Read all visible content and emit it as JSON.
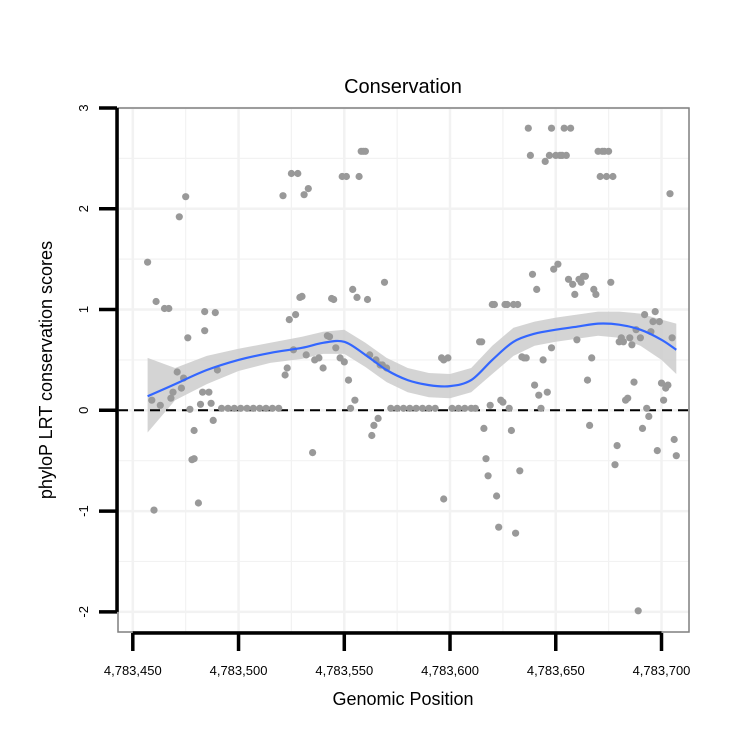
{
  "chart_data": {
    "type": "scatter",
    "title": "Conservation",
    "xlabel": "Genomic Position",
    "ylabel": "phyloP LRT conservation scores",
    "xlim": [
      4783443,
      4783713
    ],
    "ylim": [
      -2.2,
      3
    ],
    "x_ticks": [
      4783450,
      4783500,
      4783550,
      4783600,
      4783650,
      4783700
    ],
    "x_tick_labels": [
      "4,783,450",
      "4,783,500",
      "4,783,550",
      "4,783,600",
      "4,783,650",
      "4,783,700"
    ],
    "y_ticks": [
      -2,
      -1,
      0,
      1,
      2,
      3
    ],
    "y_tick_labels": [
      "-2",
      "-1",
      "0",
      "1",
      "2",
      "3"
    ],
    "reference_line": {
      "y": 0,
      "style": "dashed"
    },
    "colors": {
      "points": "#999999",
      "smooth": "#3366ff",
      "band": "#cccccc",
      "panel_border": "#7f7f7f",
      "grid": "#f2f2f2"
    },
    "points": [
      [
        4783457,
        1.47
      ],
      [
        4783459,
        0.1
      ],
      [
        4783460,
        -0.99
      ],
      [
        4783461,
        1.08
      ],
      [
        4783463,
        0.05
      ],
      [
        4783465,
        1.01
      ],
      [
        4783467,
        1.01
      ],
      [
        4783468,
        0.12
      ],
      [
        4783469,
        0.18
      ],
      [
        4783471,
        0.38
      ],
      [
        4783472,
        1.92
      ],
      [
        4783473,
        0.22
      ],
      [
        4783474,
        0.32
      ],
      [
        4783475,
        2.12
      ],
      [
        4783476,
        0.72
      ],
      [
        4783477,
        0.01
      ],
      [
        4783478,
        -0.49
      ],
      [
        4783479,
        -0.48
      ],
      [
        4783479,
        -0.2
      ],
      [
        4783481,
        -0.92
      ],
      [
        4783482,
        0.06
      ],
      [
        4783483,
        0.18
      ],
      [
        4783484,
        0.98
      ],
      [
        4783484,
        0.79
      ],
      [
        4783486,
        0.18
      ],
      [
        4783487,
        0.07
      ],
      [
        4783488,
        -0.1
      ],
      [
        4783489,
        0.97
      ],
      [
        4783490,
        0.4
      ],
      [
        4783492,
        0.02
      ],
      [
        4783495,
        0.02
      ],
      [
        4783498,
        0.02
      ],
      [
        4783501,
        0.02
      ],
      [
        4783504,
        0.02
      ],
      [
        4783507,
        0.02
      ],
      [
        4783510,
        0.02
      ],
      [
        4783513,
        0.02
      ],
      [
        4783516,
        0.02
      ],
      [
        4783519,
        0.02
      ],
      [
        4783521,
        2.13
      ],
      [
        4783522,
        0.35
      ],
      [
        4783523,
        0.42
      ],
      [
        4783524,
        0.9
      ],
      [
        4783525,
        2.35
      ],
      [
        4783526,
        0.6
      ],
      [
        4783527,
        0.95
      ],
      [
        4783528,
        2.35
      ],
      [
        4783529,
        1.12
      ],
      [
        4783530,
        1.13
      ],
      [
        4783531,
        2.14
      ],
      [
        4783532,
        0.55
      ],
      [
        4783533,
        2.2
      ],
      [
        4783535,
        -0.42
      ],
      [
        4783536,
        0.5
      ],
      [
        4783538,
        0.52
      ],
      [
        4783540,
        0.42
      ],
      [
        4783542,
        0.74
      ],
      [
        4783543,
        0.73
      ],
      [
        4783544,
        1.11
      ],
      [
        4783545,
        1.1
      ],
      [
        4783546,
        0.62
      ],
      [
        4783548,
        0.52
      ],
      [
        4783549,
        2.32
      ],
      [
        4783550,
        0.48
      ],
      [
        4783551,
        2.32
      ],
      [
        4783552,
        0.3
      ],
      [
        4783553,
        0.02
      ],
      [
        4783554,
        1.2
      ],
      [
        4783555,
        0.1
      ],
      [
        4783556,
        1.12
      ],
      [
        4783557,
        2.32
      ],
      [
        4783558,
        2.57
      ],
      [
        4783559,
        2.57
      ],
      [
        4783560,
        2.57
      ],
      [
        4783561,
        1.1
      ],
      [
        4783562,
        0.55
      ],
      [
        4783563,
        -0.25
      ],
      [
        4783564,
        -0.15
      ],
      [
        4783565,
        0.5
      ],
      [
        4783566,
        -0.08
      ],
      [
        4783567,
        0.45
      ],
      [
        4783568,
        0.45
      ],
      [
        4783569,
        1.27
      ],
      [
        4783570,
        0.42
      ],
      [
        4783572,
        0.02
      ],
      [
        4783575,
        0.02
      ],
      [
        4783578,
        0.02
      ],
      [
        4783581,
        0.02
      ],
      [
        4783584,
        0.02
      ],
      [
        4783587,
        0.02
      ],
      [
        4783590,
        0.02
      ],
      [
        4783593,
        0.02
      ],
      [
        4783596,
        0.52
      ],
      [
        4783597,
        0.5
      ],
      [
        4783597,
        -0.88
      ],
      [
        4783599,
        0.52
      ],
      [
        4783601,
        0.02
      ],
      [
        4783604,
        0.02
      ],
      [
        4783607,
        0.02
      ],
      [
        4783610,
        0.02
      ],
      [
        4783612,
        0.02
      ],
      [
        4783614,
        0.68
      ],
      [
        4783615,
        0.68
      ],
      [
        4783616,
        -0.18
      ],
      [
        4783617,
        -0.48
      ],
      [
        4783618,
        -0.65
      ],
      [
        4783619,
        0.05
      ],
      [
        4783620,
        1.05
      ],
      [
        4783621,
        1.05
      ],
      [
        4783622,
        -0.85
      ],
      [
        4783623,
        -1.16
      ],
      [
        4783624,
        0.1
      ],
      [
        4783625,
        0.08
      ],
      [
        4783626,
        1.05
      ],
      [
        4783627,
        1.05
      ],
      [
        4783628,
        0.02
      ],
      [
        4783629,
        -0.2
      ],
      [
        4783630,
        1.05
      ],
      [
        4783631,
        -1.22
      ],
      [
        4783632,
        1.05
      ],
      [
        4783633,
        -0.6
      ],
      [
        4783634,
        0.53
      ],
      [
        4783635,
        0.52
      ],
      [
        4783636,
        0.52
      ],
      [
        4783637,
        2.8
      ],
      [
        4783638,
        2.53
      ],
      [
        4783639,
        1.35
      ],
      [
        4783640,
        0.25
      ],
      [
        4783641,
        1.2
      ],
      [
        4783642,
        0.15
      ],
      [
        4783643,
        0.02
      ],
      [
        4783644,
        0.5
      ],
      [
        4783645,
        2.47
      ],
      [
        4783646,
        0.18
      ],
      [
        4783647,
        2.53
      ],
      [
        4783648,
        2.8
      ],
      [
        4783648,
        0.62
      ],
      [
        4783649,
        1.4
      ],
      [
        4783650,
        2.53
      ],
      [
        4783651,
        1.45
      ],
      [
        4783652,
        2.53
      ],
      [
        4783653,
        2.53
      ],
      [
        4783654,
        2.8
      ],
      [
        4783655,
        2.53
      ],
      [
        4783656,
        1.3
      ],
      [
        4783657,
        2.8
      ],
      [
        4783658,
        1.25
      ],
      [
        4783659,
        1.15
      ],
      [
        4783660,
        0.7
      ],
      [
        4783661,
        1.3
      ],
      [
        4783662,
        1.27
      ],
      [
        4783663,
        1.33
      ],
      [
        4783664,
        1.33
      ],
      [
        4783665,
        0.3
      ],
      [
        4783666,
        -0.15
      ],
      [
        4783667,
        0.52
      ],
      [
        4783668,
        1.2
      ],
      [
        4783669,
        1.15
      ],
      [
        4783670,
        2.57
      ],
      [
        4783671,
        2.32
      ],
      [
        4783672,
        2.57
      ],
      [
        4783673,
        2.57
      ],
      [
        4783674,
        2.32
      ],
      [
        4783675,
        2.57
      ],
      [
        4783676,
        1.27
      ],
      [
        4783677,
        2.32
      ],
      [
        4783678,
        -0.54
      ],
      [
        4783679,
        -0.35
      ],
      [
        4783680,
        0.68
      ],
      [
        4783681,
        0.72
      ],
      [
        4783682,
        0.68
      ],
      [
        4783683,
        0.1
      ],
      [
        4783684,
        0.12
      ],
      [
        4783685,
        0.72
      ],
      [
        4783686,
        0.65
      ],
      [
        4783687,
        0.28
      ],
      [
        4783688,
        0.8
      ],
      [
        4783689,
        -1.99
      ],
      [
        4783690,
        0.72
      ],
      [
        4783691,
        -0.18
      ],
      [
        4783692,
        0.95
      ],
      [
        4783693,
        0.02
      ],
      [
        4783694,
        -0.06
      ],
      [
        4783695,
        0.78
      ],
      [
        4783696,
        0.88
      ],
      [
        4783697,
        0.98
      ],
      [
        4783698,
        -0.4
      ],
      [
        4783699,
        0.88
      ],
      [
        4783700,
        0.27
      ],
      [
        4783701,
        0.1
      ],
      [
        4783702,
        0.22
      ],
      [
        4783703,
        0.25
      ],
      [
        4783704,
        2.15
      ],
      [
        4783705,
        0.72
      ],
      [
        4783706,
        -0.29
      ],
      [
        4783707,
        -0.45
      ]
    ],
    "smooth": {
      "x": [
        4783457,
        4783470,
        4783485,
        4783500,
        4783515,
        4783530,
        4783540,
        4783550,
        4783560,
        4783570,
        4783580,
        4783590,
        4783600,
        4783610,
        4783620,
        4783630,
        4783640,
        4783650,
        4783660,
        4783670,
        4783680,
        4783690,
        4783700,
        4783707
      ],
      "y": [
        0.14,
        0.26,
        0.4,
        0.5,
        0.57,
        0.62,
        0.67,
        0.68,
        0.55,
        0.4,
        0.3,
        0.25,
        0.24,
        0.3,
        0.5,
        0.68,
        0.76,
        0.8,
        0.83,
        0.86,
        0.85,
        0.8,
        0.7,
        0.6
      ],
      "lower": [
        -0.22,
        0.1,
        0.26,
        0.39,
        0.47,
        0.51,
        0.56,
        0.56,
        0.43,
        0.28,
        0.18,
        0.13,
        0.12,
        0.18,
        0.36,
        0.54,
        0.64,
        0.68,
        0.71,
        0.74,
        0.72,
        0.64,
        0.5,
        0.36
      ],
      "upper": [
        0.52,
        0.42,
        0.54,
        0.61,
        0.67,
        0.73,
        0.78,
        0.8,
        0.67,
        0.52,
        0.42,
        0.37,
        0.36,
        0.42,
        0.64,
        0.82,
        0.88,
        0.92,
        0.95,
        0.98,
        0.98,
        0.96,
        0.9,
        0.86
      ]
    }
  }
}
